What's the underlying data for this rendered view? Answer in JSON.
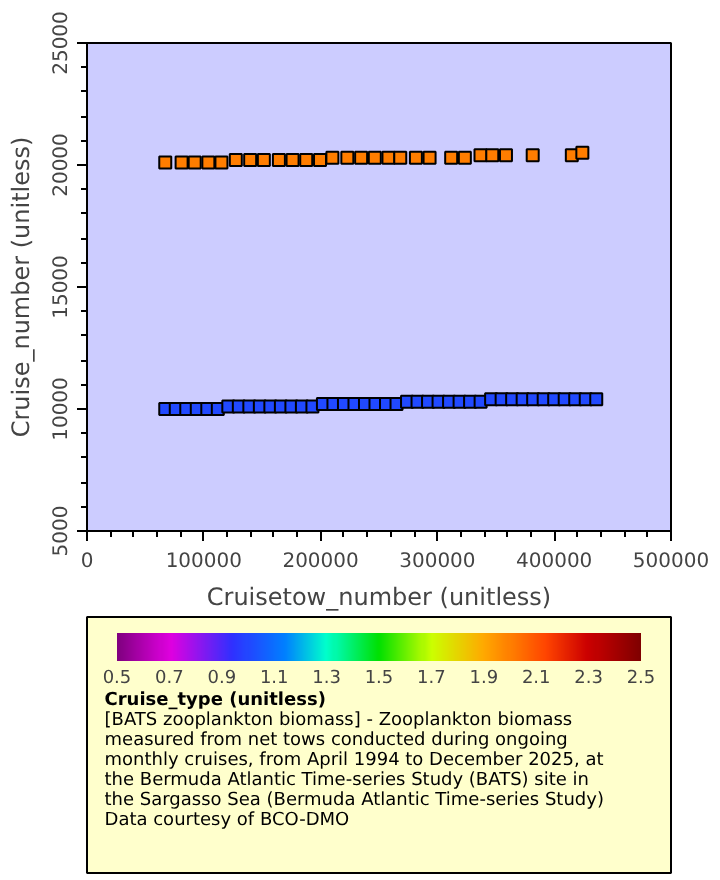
{
  "chart_data": {
    "type": "scatter",
    "xlabel": "Cruisetow_number (unitless)",
    "ylabel": "Cruise_number (unitless)",
    "clabel": "Cruise_type (unitless)",
    "xlim": [
      0,
      500000
    ],
    "ylim": [
      5000,
      25000
    ],
    "xticks": [
      0,
      100000,
      200000,
      300000,
      400000,
      500000
    ],
    "yticks": [
      5000,
      10000,
      15000,
      20000,
      25000
    ],
    "clim": [
      0.5,
      2.5
    ],
    "cticks": [
      0.5,
      0.7,
      0.9,
      1.1,
      1.3,
      1.5,
      1.7,
      1.9,
      2.1,
      2.3,
      2.5
    ],
    "marker": "square",
    "grid": false,
    "annotations": [
      "[BATS zooplankton biomass] - Zooplankton biomass measured from net tows conducted during ongoing monthly cruises, from April 1994 to December 2025, at the Bermuda Atlantic Time-series Study (BATS) site in the Sargasso Sea (Bermuda Atlantic Time-series Study)",
      "Data courtesy of BCO-DMO"
    ],
    "series": [
      {
        "x": [
          67000,
          81000,
          92200,
          103900,
          115100,
          127400,
          139700,
          151400,
          164300,
          176000,
          187700,
          199500,
          210100,
          222900,
          234700,
          246400,
          258100,
          268200,
          281600,
          293300,
          311800,
          323500,
          336900,
          347000,
          358700,
          381600,
          415100,
          424100
        ],
        "values": [
          20100,
          20100,
          20100,
          20100,
          20100,
          20200,
          20200,
          20200,
          20200,
          20200,
          20200,
          20200,
          20300,
          20300,
          20300,
          20300,
          20300,
          20300,
          20300,
          20300,
          20300,
          20300,
          20400,
          20400,
          20400,
          20400,
          20400,
          20500
        ],
        "cvalues": [
          2,
          2,
          2,
          2,
          2,
          2,
          2,
          2,
          2,
          2,
          2,
          2,
          2,
          2,
          2,
          2,
          2,
          2,
          2,
          2,
          2,
          2,
          2,
          2,
          2,
          2,
          2,
          2
        ]
      },
      {
        "x": [
          67000,
          76000,
          85000,
          94000,
          103000,
          112000,
          121000,
          130000,
          139000,
          148000,
          157000,
          166000,
          175000,
          184000,
          193000,
          202000,
          211000,
          220000,
          229000,
          238000,
          247000,
          256000,
          265000,
          274000,
          283000,
          292000,
          301000,
          310000,
          319000,
          328000,
          337000,
          346000,
          355000,
          364000,
          373000,
          382000,
          391000,
          400000,
          409000,
          418000,
          427000,
          436000
        ],
        "values": [
          10000,
          10000,
          10000,
          10000,
          10000,
          10000,
          10100,
          10100,
          10100,
          10100,
          10100,
          10100,
          10100,
          10100,
          10100,
          10200,
          10200,
          10200,
          10200,
          10200,
          10200,
          10200,
          10200,
          10300,
          10300,
          10300,
          10300,
          10300,
          10300,
          10300,
          10300,
          10400,
          10400,
          10400,
          10400,
          10400,
          10400,
          10400,
          10400,
          10400,
          10400,
          10400
        ],
        "cvalues": [
          1,
          1,
          1,
          1,
          1,
          1,
          1,
          1,
          1,
          1,
          1,
          1,
          1,
          1,
          1,
          1,
          1,
          1,
          1,
          1,
          1,
          1,
          1,
          1,
          1,
          1,
          1,
          1,
          1,
          1,
          1,
          1,
          1,
          1,
          1,
          1,
          1,
          1,
          1,
          1,
          1,
          1
        ]
      }
    ]
  }
}
